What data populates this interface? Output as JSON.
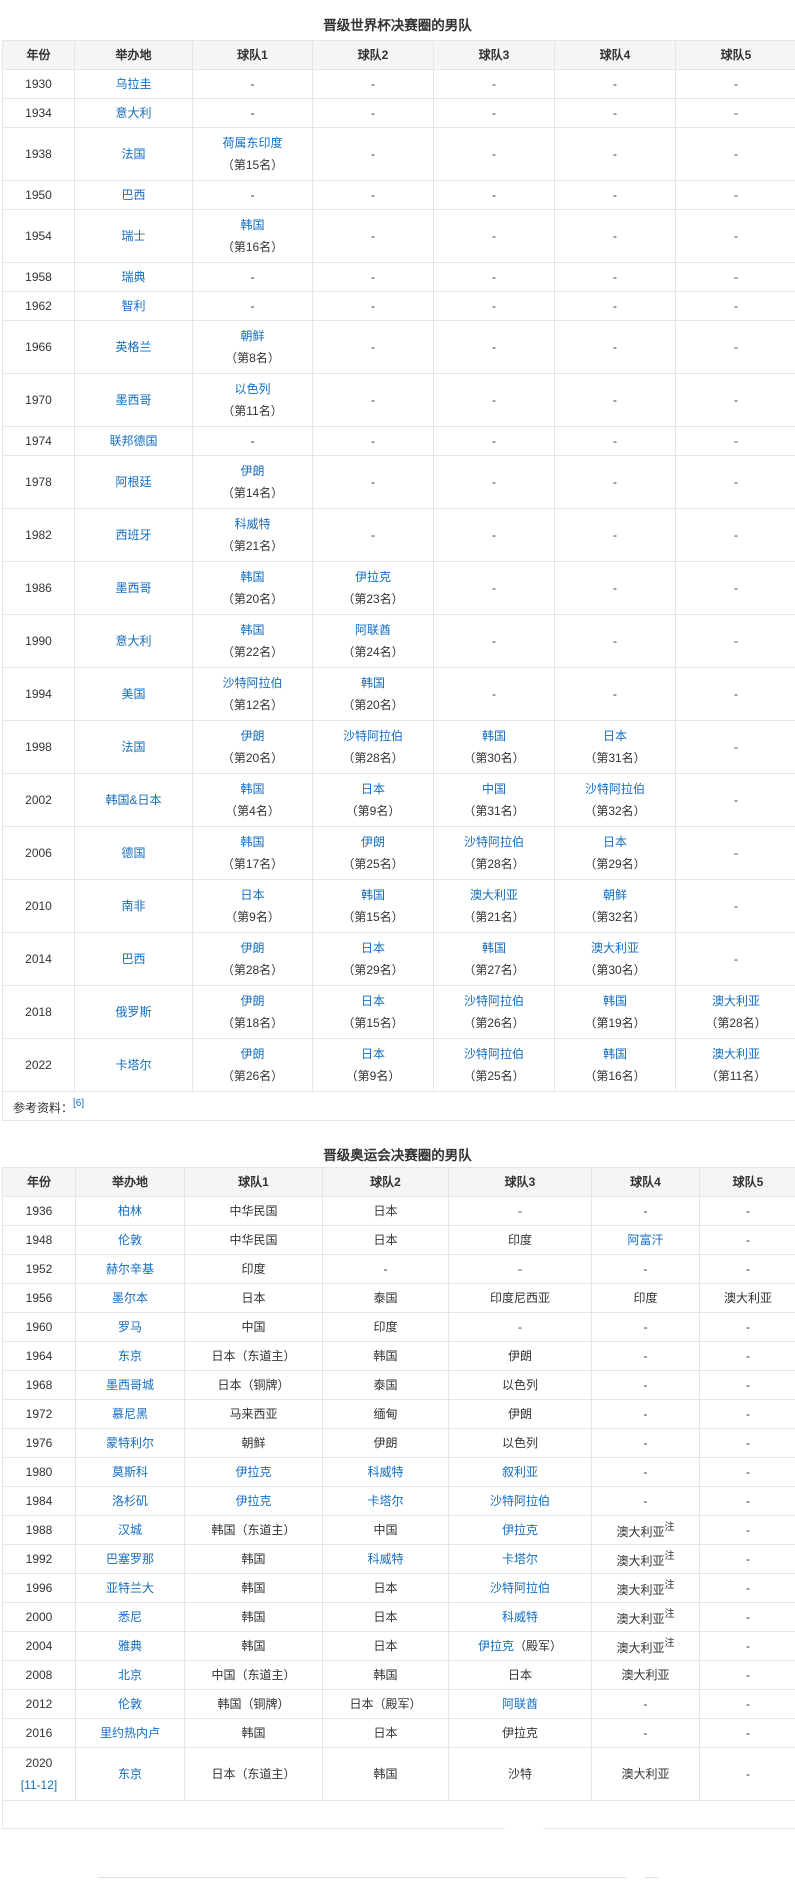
{
  "worldcup": {
    "title": "晋级世界杯决赛圈的男队",
    "headers": [
      "年份",
      "举办地",
      "球队1",
      "球队2",
      "球队3",
      "球队4",
      "球队5"
    ],
    "rows": [
      {
        "year": "1930",
        "host": "乌拉圭",
        "teams": [
          "-",
          "-",
          "-",
          "-",
          "-"
        ]
      },
      {
        "year": "1934",
        "host": "意大利",
        "teams": [
          "-",
          "-",
          "-",
          "-",
          "-"
        ]
      },
      {
        "year": "1938",
        "host": "法国",
        "teams": [
          {
            "t": "荷属东印度",
            "r": "（第15名）"
          },
          "-",
          "-",
          "-",
          "-"
        ]
      },
      {
        "year": "1950",
        "host": "巴西",
        "teams": [
          "-",
          "-",
          "-",
          "-",
          "-"
        ]
      },
      {
        "year": "1954",
        "host": "瑞士",
        "teams": [
          {
            "t": "韩国",
            "r": "（第16名）"
          },
          "-",
          "-",
          "-",
          "-"
        ]
      },
      {
        "year": "1958",
        "host": "瑞典",
        "teams": [
          "-",
          "-",
          "-",
          "-",
          "-"
        ]
      },
      {
        "year": "1962",
        "host": "智利",
        "teams": [
          "-",
          "-",
          "-",
          "-",
          "-"
        ]
      },
      {
        "year": "1966",
        "host": "英格兰",
        "teams": [
          {
            "t": "朝鲜",
            "r": "（第8名）"
          },
          "-",
          "-",
          "-",
          "-"
        ]
      },
      {
        "year": "1970",
        "host": "墨西哥",
        "teams": [
          {
            "t": "以色列",
            "r": "（第11名）"
          },
          "-",
          "-",
          "-",
          "-"
        ]
      },
      {
        "year": "1974",
        "host": "联邦德国",
        "teams": [
          "-",
          "-",
          "-",
          "-",
          "-"
        ]
      },
      {
        "year": "1978",
        "host": "阿根廷",
        "teams": [
          {
            "t": "伊朗",
            "r": "（第14名）"
          },
          "-",
          "-",
          "-",
          "-"
        ]
      },
      {
        "year": "1982",
        "host": "西班牙",
        "teams": [
          {
            "t": "科威特",
            "r": "（第21名）"
          },
          "-",
          "-",
          "-",
          "-"
        ]
      },
      {
        "year": "1986",
        "host": "墨西哥",
        "teams": [
          {
            "t": "韩国",
            "r": "（第20名）"
          },
          {
            "t": "伊拉克",
            "r": "（第23名）"
          },
          "-",
          "-",
          "-"
        ]
      },
      {
        "year": "1990",
        "host": "意大利",
        "teams": [
          {
            "t": "韩国",
            "r": "（第22名）"
          },
          {
            "t": "阿联酋",
            "r": "（第24名）"
          },
          "-",
          "-",
          "-"
        ]
      },
      {
        "year": "1994",
        "host": "美国",
        "teams": [
          {
            "t": "沙特阿拉伯",
            "r": "（第12名）"
          },
          {
            "t": "韩国",
            "r": "（第20名）"
          },
          "-",
          "-",
          "-"
        ]
      },
      {
        "year": "1998",
        "host": "法国",
        "teams": [
          {
            "t": "伊朗",
            "r": "（第20名）"
          },
          {
            "t": "沙特阿拉伯",
            "r": "（第28名）"
          },
          {
            "t": "韩国",
            "r": "（第30名）"
          },
          {
            "t": "日本",
            "r": "（第31名）"
          },
          "-"
        ]
      },
      {
        "year": "2002",
        "host": "韩国&日本",
        "teams": [
          {
            "t": "韩国",
            "r": "（第4名）"
          },
          {
            "t": "日本",
            "r": "（第9名）"
          },
          {
            "t": "中国",
            "r": "（第31名）"
          },
          {
            "t": "沙特阿拉伯",
            "r": "（第32名）"
          },
          "-"
        ]
      },
      {
        "year": "2006",
        "host": "德国",
        "teams": [
          {
            "t": "韩国",
            "r": "（第17名）"
          },
          {
            "t": "伊朗",
            "r": "（第25名）"
          },
          {
            "t": "沙特阿拉伯",
            "r": "（第28名）"
          },
          {
            "t": "日本",
            "r": "（第29名）"
          },
          "-"
        ]
      },
      {
        "year": "2010",
        "host": "南非",
        "teams": [
          {
            "t": "日本",
            "r": "（第9名）"
          },
          {
            "t": "韩国",
            "r": "（第15名）"
          },
          {
            "t": "澳大利亚",
            "r": "（第21名）"
          },
          {
            "t": "朝鲜",
            "r": "（第32名）"
          },
          "-"
        ]
      },
      {
        "year": "2014",
        "host": "巴西",
        "teams": [
          {
            "t": "伊朗",
            "r": "（第28名）"
          },
          {
            "t": "日本",
            "r": "（第29名）"
          },
          {
            "t": "韩国",
            "r": "（第27名）"
          },
          {
            "t": "澳大利亚",
            "r": "（第30名）"
          },
          "-"
        ]
      },
      {
        "year": "2018",
        "host": "俄罗斯",
        "teams": [
          {
            "t": "伊朗",
            "r": "（第18名）"
          },
          {
            "t": "日本",
            "r": "（第15名）"
          },
          {
            "t": "沙特阿拉伯",
            "r": "（第26名）"
          },
          {
            "t": "韩国",
            "r": "（第19名）"
          },
          {
            "t": "澳大利亚",
            "r": "（第28名）"
          }
        ]
      },
      {
        "year": "2022",
        "host": "卡塔尔",
        "teams": [
          {
            "t": "伊朗",
            "r": "（第26名）"
          },
          {
            "t": "日本",
            "r": "（第9名）"
          },
          {
            "t": "沙特阿拉伯",
            "r": "（第25名）"
          },
          {
            "t": "韩国",
            "r": "（第16名）"
          },
          {
            "t": "澳大利亚",
            "r": "（第11名）"
          }
        ]
      }
    ],
    "reference_label": "参考资料：",
    "reference_link": "[6]"
  },
  "olympics": {
    "title": "晋级奥运会决赛圈的男队",
    "headers": [
      "年份",
      "举办地",
      "球队1",
      "球队2",
      "球队3",
      "球队4",
      "球队5"
    ],
    "rows": [
      {
        "year": "1936",
        "host": "柏林",
        "teams": [
          {
            "t": "中华民国"
          },
          {
            "t": "日本"
          },
          {
            "t": "-"
          },
          {
            "t": "-"
          },
          {
            "t": "-"
          }
        ]
      },
      {
        "year": "1948",
        "host": "伦敦",
        "teams": [
          {
            "t": "中华民国"
          },
          {
            "t": "日本"
          },
          {
            "t": "印度"
          },
          {
            "t": "阿富汗",
            "l": true
          },
          {
            "t": "-"
          }
        ]
      },
      {
        "year": "1952",
        "host": "赫尔辛基",
        "teams": [
          {
            "t": "印度"
          },
          {
            "t": "-"
          },
          {
            "t": "-"
          },
          {
            "t": "-"
          },
          {
            "t": "-"
          }
        ]
      },
      {
        "year": "1956",
        "host": "墨尔本",
        "teams": [
          {
            "t": "日本"
          },
          {
            "t": "泰国"
          },
          {
            "t": "印度尼西亚"
          },
          {
            "t": "印度"
          },
          {
            "t": "澳大利亚"
          }
        ]
      },
      {
        "year": "1960",
        "host": "罗马",
        "teams": [
          {
            "t": "中国"
          },
          {
            "t": "印度"
          },
          {
            "t": "-"
          },
          {
            "t": "-"
          },
          {
            "t": "-"
          }
        ]
      },
      {
        "year": "1964",
        "host": "东京",
        "teams": [
          {
            "t": "日本（东道主）"
          },
          {
            "t": "韩国"
          },
          {
            "t": "伊朗"
          },
          {
            "t": "-"
          },
          {
            "t": "-"
          }
        ]
      },
      {
        "year": "1968",
        "host": "墨西哥城",
        "teams": [
          {
            "t": "日本（铜牌）"
          },
          {
            "t": "泰国"
          },
          {
            "t": "以色列"
          },
          {
            "t": "-"
          },
          {
            "t": "-"
          }
        ]
      },
      {
        "year": "1972",
        "host": "慕尼黑",
        "teams": [
          {
            "t": "马来西亚"
          },
          {
            "t": "缅甸"
          },
          {
            "t": "伊朗"
          },
          {
            "t": "-"
          },
          {
            "t": "-"
          }
        ]
      },
      {
        "year": "1976",
        "host": "蒙特利尔",
        "teams": [
          {
            "t": "朝鲜"
          },
          {
            "t": "伊朗"
          },
          {
            "t": "以色列"
          },
          {
            "t": "-"
          },
          {
            "t": "-"
          }
        ]
      },
      {
        "year": "1980",
        "host": "莫斯科",
        "teams": [
          {
            "t": "伊拉克",
            "l": true
          },
          {
            "t": "科威特",
            "l": true
          },
          {
            "t": "叙利亚",
            "l": true
          },
          {
            "t": "-"
          },
          {
            "t": "-"
          }
        ]
      },
      {
        "year": "1984",
        "host": "洛杉矶",
        "teams": [
          {
            "t": "伊拉克",
            "l": true
          },
          {
            "t": "卡塔尔",
            "l": true
          },
          {
            "t": "沙特阿拉伯",
            "l": true
          },
          {
            "t": "-"
          },
          {
            "t": "-"
          }
        ]
      },
      {
        "year": "1988",
        "host": "汉城",
        "teams": [
          {
            "t": "韩国（东道主）"
          },
          {
            "t": "中国"
          },
          {
            "t": "伊拉克",
            "l": true
          },
          {
            "t": "澳大利亚",
            "n": "注"
          },
          {
            "t": "-"
          }
        ]
      },
      {
        "year": "1992",
        "host": "巴塞罗那",
        "teams": [
          {
            "t": "韩国"
          },
          {
            "t": "科威特",
            "l": true
          },
          {
            "t": "卡塔尔",
            "l": true
          },
          {
            "t": "澳大利亚",
            "n": "注"
          },
          {
            "t": "-"
          }
        ]
      },
      {
        "year": "1996",
        "host": "亚特兰大",
        "teams": [
          {
            "t": "韩国"
          },
          {
            "t": "日本"
          },
          {
            "t": "沙特阿拉伯",
            "l": true
          },
          {
            "t": "澳大利亚",
            "n": "注"
          },
          {
            "t": "-"
          }
        ]
      },
      {
        "year": "2000",
        "host": "悉尼",
        "teams": [
          {
            "t": "韩国"
          },
          {
            "t": "日本"
          },
          {
            "t": "科威特",
            "l": true
          },
          {
            "t": "澳大利亚",
            "n": "注"
          },
          {
            "t": "-"
          }
        ]
      },
      {
        "year": "2004",
        "host": "雅典",
        "teams": [
          {
            "t": "韩国"
          },
          {
            "t": "日本"
          },
          {
            "t": "伊拉克",
            "l": true,
            "s": "（殿军）"
          },
          {
            "t": "澳大利亚",
            "n": "注"
          },
          {
            "t": "-"
          }
        ]
      },
      {
        "year": "2008",
        "host": "北京",
        "teams": [
          {
            "t": "中国（东道主）"
          },
          {
            "t": "韩国"
          },
          {
            "t": "日本"
          },
          {
            "t": "澳大利亚"
          },
          {
            "t": "-"
          }
        ]
      },
      {
        "year": "2012",
        "host": "伦敦",
        "teams": [
          {
            "t": "韩国（铜牌）"
          },
          {
            "t": "日本（殿军）"
          },
          {
            "t": "阿联酋",
            "l": true
          },
          {
            "t": "-"
          },
          {
            "t": "-"
          }
        ]
      },
      {
        "year": "2016",
        "host": "里约热内卢",
        "teams": [
          {
            "t": "韩国"
          },
          {
            "t": "日本"
          },
          {
            "t": "伊拉克"
          },
          {
            "t": "-"
          },
          {
            "t": "-"
          }
        ]
      },
      {
        "year": "2020",
        "year_ref": "[11-12]",
        "host": "东京",
        "teams": [
          {
            "t": "日本（东道主）"
          },
          {
            "t": "韩国"
          },
          {
            "t": "沙特"
          },
          {
            "t": "澳大利亚"
          },
          {
            "t": "-"
          }
        ]
      }
    ]
  },
  "colors": {
    "link": "#136ec2",
    "text": "#333333",
    "header_bg": "#f5f5f5",
    "border": "#e6e6e6"
  }
}
